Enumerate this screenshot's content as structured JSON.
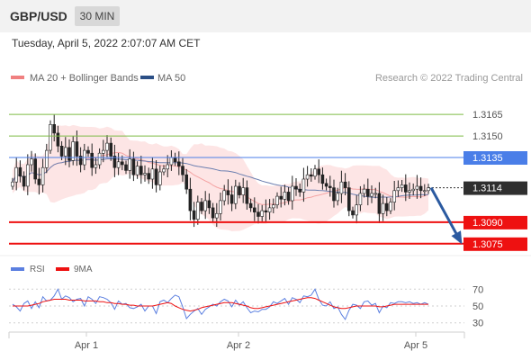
{
  "header": {
    "symbol": "GBP/USD",
    "timeframe": "30 MIN",
    "datetime": "Tuesday, April 5, 2022 2:07:07 AM CET"
  },
  "legend": {
    "ma20_label": "MA 20 + Bollinger Bands",
    "ma20_color": "#f08080",
    "ma50_label": "MA 50",
    "ma50_color": "#2b4f86",
    "copyright": "Research © 2022 Trading Central"
  },
  "chart_data": [
    {
      "type": "candlestick",
      "ylim": [
        1.3068,
        1.3182
      ],
      "x_labels": [
        "Apr 1",
        "Apr 2",
        "Apr 5"
      ],
      "levels": [
        {
          "label": "1.3165",
          "value": 1.3165,
          "color": "#7dbb45",
          "kind": "resistance"
        },
        {
          "label": "1.3150",
          "value": 1.315,
          "color": "#7dbb45",
          "kind": "resistance"
        },
        {
          "label": "1.3135",
          "value": 1.3135,
          "color": "#4a7ee8",
          "kind": "pivot"
        },
        {
          "label": "1.3090",
          "value": 1.309,
          "color": "#ee1111",
          "kind": "support"
        },
        {
          "label": "1.3075",
          "value": 1.3075,
          "color": "#ee1111",
          "kind": "support"
        }
      ],
      "last_price": {
        "label": "1.3114",
        "value": 1.3114
      },
      "forecast_arrow": {
        "from": 1.3114,
        "to": 1.3075
      },
      "close": [
        1.3118,
        1.3128,
        1.3122,
        1.3115,
        1.313,
        1.3134,
        1.312,
        1.3116,
        1.3128,
        1.314,
        1.3158,
        1.3152,
        1.3143,
        1.3136,
        1.3142,
        1.3133,
        1.3146,
        1.3136,
        1.313,
        1.314,
        1.3138,
        1.3128,
        1.313,
        1.3138,
        1.314,
        1.3145,
        1.3136,
        1.3128,
        1.3132,
        1.313,
        1.3126,
        1.3134,
        1.3123,
        1.3129,
        1.3123,
        1.3124,
        1.312,
        1.3127,
        1.3116,
        1.3125,
        1.3127,
        1.313,
        1.3135,
        1.3132,
        1.3129,
        1.3123,
        1.3113,
        1.3098,
        1.3092,
        1.3104,
        1.3098,
        1.3105,
        1.31,
        1.3093,
        1.3096,
        1.3105,
        1.3112,
        1.3109,
        1.3103,
        1.3115,
        1.3109,
        1.3114,
        1.3103,
        1.31,
        1.3097,
        1.3094,
        1.3098,
        1.3097,
        1.31,
        1.3102,
        1.3108,
        1.3106,
        1.3111,
        1.3105,
        1.3115,
        1.3113,
        1.3111,
        1.312,
        1.3123,
        1.3122,
        1.3127,
        1.3123,
        1.3117,
        1.3115,
        1.3114,
        1.3105,
        1.311,
        1.3118,
        1.3114,
        1.3098,
        1.3095,
        1.3102,
        1.311,
        1.3113,
        1.3108,
        1.311,
        1.311,
        1.3096,
        1.3103,
        1.3098,
        1.3104,
        1.3112,
        1.3114,
        1.3116,
        1.3111,
        1.3112,
        1.3113,
        1.3115,
        1.3112,
        1.3112,
        1.3114
      ]
    },
    {
      "type": "line",
      "title": "RSI",
      "ylim": [
        20,
        80
      ],
      "yticks": [
        "70",
        "50",
        "30"
      ],
      "series": [
        {
          "name": "RSI",
          "color": "#5b7fe0",
          "values": [
            52,
            49,
            44,
            53,
            56,
            47,
            55,
            48,
            61,
            56,
            57,
            62,
            70,
            58,
            62,
            60,
            55,
            58,
            59,
            50,
            61,
            58,
            53,
            61,
            60,
            58,
            54,
            46,
            56,
            52,
            53,
            48,
            47,
            49,
            52,
            44,
            50,
            50,
            41,
            55,
            57,
            54,
            59,
            63,
            61,
            49,
            35,
            40,
            44,
            47,
            40,
            46,
            49,
            52,
            50,
            55,
            58,
            56,
            49,
            57,
            51,
            55,
            48,
            42,
            44,
            43,
            46,
            46,
            49,
            55,
            53,
            56,
            59,
            52,
            60,
            58,
            54,
            62,
            61,
            63,
            70,
            58,
            51,
            50,
            55,
            47,
            49,
            40,
            34,
            45,
            52,
            51,
            47,
            55,
            56,
            51,
            53,
            42,
            50,
            48,
            54,
            53,
            55,
            55,
            54,
            55,
            53,
            54,
            52,
            54,
            52
          ]
        },
        {
          "name": "9MA",
          "color": "#ee1111",
          "values": [
            50,
            50,
            50,
            50,
            50,
            51,
            52,
            53,
            55,
            56,
            57,
            58,
            58,
            58,
            58,
            57,
            57,
            57,
            57,
            56,
            56,
            56,
            56,
            55,
            55,
            54,
            54,
            53,
            53,
            52,
            52,
            51,
            51,
            50,
            50,
            50,
            50,
            50,
            51,
            52,
            53,
            54,
            53,
            50,
            48,
            46,
            45,
            44,
            45,
            46,
            48,
            49,
            50,
            51,
            52,
            53,
            54,
            54,
            54,
            53,
            52,
            51,
            50,
            48,
            47,
            47,
            48,
            49,
            50,
            51,
            52,
            53,
            54,
            55,
            56,
            57,
            58,
            59,
            60,
            60,
            59,
            57,
            55,
            53,
            51,
            49,
            48,
            47,
            47,
            48,
            49,
            50,
            50,
            50,
            50,
            50,
            50,
            49,
            49,
            50,
            51,
            52,
            52,
            52,
            52,
            52,
            52,
            52,
            52,
            52,
            52
          ]
        }
      ]
    }
  ]
}
